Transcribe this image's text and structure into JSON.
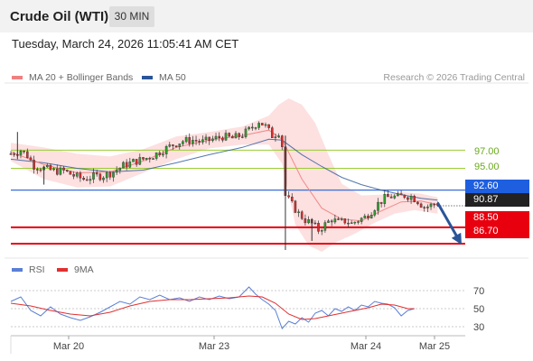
{
  "header": {
    "title": "Crude Oil (WTI)",
    "timeframe": "30 MIN"
  },
  "datetime": "Tuesday, March 24, 2026 11:05:41 AM CET",
  "legend": {
    "ma20_label": "MA 20 + Bollinger Bands",
    "ma50_label": "MA 50",
    "credit": "Research © 2026 Trading Central"
  },
  "rsi_legend": {
    "rsi_label": "RSI",
    "ma_label": "9MA"
  },
  "colors": {
    "ma20": "#f08080",
    "ma50": "#2a5599",
    "band_fill": "#fcd6d6",
    "up": "#2e9e2e",
    "down": "#d32f2f",
    "resistance": "#9acd32",
    "current_line": "#3a6fd8",
    "support": "#e8000f",
    "rsi": "#5a7fd6",
    "rsi_ma": "#e03030"
  },
  "levels": {
    "resistances": [
      "97.00",
      "95.00"
    ],
    "pivot": "92.60",
    "last": "90.87",
    "supports": [
      "88.50",
      "86.70"
    ]
  },
  "chart_data": [
    {
      "type": "candlestick",
      "title": "Crude Oil (WTI)",
      "timeframe": "30 MIN",
      "x_ticks": [
        "Mar 20",
        "Mar 23",
        "Mar 24",
        "Mar 25"
      ],
      "ylim": [
        85.7,
        103.0
      ],
      "horizontal_levels": [
        97.0,
        95.0,
        92.6,
        88.5,
        86.7
      ],
      "last_price": 90.87,
      "forecast": {
        "from": 91.2,
        "to": 86.7
      },
      "close_path": [
        [
          0,
          96.6
        ],
        [
          3,
          97.0
        ],
        [
          5,
          96.4
        ],
        [
          7,
          95.3
        ],
        [
          10,
          95.0
        ],
        [
          13,
          94.7
        ],
        [
          16,
          94.7
        ],
        [
          19,
          94.2
        ],
        [
          22,
          93.8
        ],
        [
          25,
          94.1
        ],
        [
          28,
          94.2
        ],
        [
          31,
          94.6
        ],
        [
          34,
          95.3
        ],
        [
          37,
          95.7
        ],
        [
          40,
          96.0
        ],
        [
          43,
          96.4
        ],
        [
          46,
          97.0
        ],
        [
          49,
          97.6
        ],
        [
          52,
          98.0
        ],
        [
          55,
          98.1
        ],
        [
          58,
          97.9
        ],
        [
          61,
          98.2
        ],
        [
          64,
          98.5
        ],
        [
          67,
          98.3
        ],
        [
          70,
          98.7
        ],
        [
          73,
          99.5
        ],
        [
          75,
          100.2
        ],
        [
          77,
          99.6
        ],
        [
          79,
          98.6
        ],
        [
          81,
          99.0
        ],
        [
          82,
          97.5
        ],
        [
          83,
          92.0
        ],
        [
          85,
          91.0
        ],
        [
          87,
          90.0
        ],
        [
          89,
          89.3
        ],
        [
          91,
          88.9
        ],
        [
          93,
          88.2
        ],
        [
          95,
          88.8
        ],
        [
          97,
          89.4
        ],
        [
          99,
          89.0
        ],
        [
          101,
          89.2
        ],
        [
          103,
          88.9
        ],
        [
          105,
          89.3
        ],
        [
          107,
          89.6
        ],
        [
          109,
          90.3
        ],
        [
          111,
          91.1
        ],
        [
          113,
          91.7
        ],
        [
          115,
          91.9
        ],
        [
          117,
          91.8
        ],
        [
          119,
          92.0
        ],
        [
          121,
          91.9
        ],
        [
          123,
          91.4
        ],
        [
          125,
          90.7
        ],
        [
          127,
          90.9
        ],
        [
          129,
          91.2
        ]
      ],
      "spikes": [
        [
          2,
          99.0,
          96.0
        ],
        [
          10,
          95.2,
          93.2
        ],
        [
          83,
          98.6,
          86.0
        ],
        [
          91,
          89.5,
          87.0
        ]
      ],
      "ma20": [
        [
          0,
          96.8
        ],
        [
          10,
          95.4
        ],
        [
          20,
          94.5
        ],
        [
          30,
          94.6
        ],
        [
          40,
          95.8
        ],
        [
          50,
          97.3
        ],
        [
          60,
          98.1
        ],
        [
          70,
          98.6
        ],
        [
          78,
          99.2
        ],
        [
          82,
          98.2
        ],
        [
          88,
          93.8
        ],
        [
          94,
          90.6
        ],
        [
          100,
          89.4
        ],
        [
          106,
          89.2
        ],
        [
          112,
          90.3
        ],
        [
          118,
          91.3
        ],
        [
          124,
          91.4
        ],
        [
          129,
          91.0
        ]
      ],
      "bb_upper": [
        [
          0,
          97.8
        ],
        [
          10,
          97.3
        ],
        [
          20,
          96.6
        ],
        [
          30,
          96.3
        ],
        [
          40,
          97.1
        ],
        [
          50,
          98.5
        ],
        [
          60,
          99.0
        ],
        [
          70,
          99.6
        ],
        [
          78,
          100.8
        ],
        [
          81,
          102.0
        ],
        [
          84,
          102.7
        ],
        [
          88,
          102.0
        ],
        [
          92,
          100.0
        ],
        [
          96,
          96.5
        ],
        [
          100,
          93.3
        ],
        [
          106,
          92.0
        ],
        [
          112,
          92.1
        ],
        [
          118,
          92.4
        ],
        [
          124,
          92.2
        ],
        [
          129,
          91.8
        ]
      ],
      "bb_lower": [
        [
          0,
          95.8
        ],
        [
          10,
          93.8
        ],
        [
          20,
          92.9
        ],
        [
          30,
          93.0
        ],
        [
          40,
          94.5
        ],
        [
          50,
          96.0
        ],
        [
          60,
          97.2
        ],
        [
          70,
          97.6
        ],
        [
          78,
          97.6
        ],
        [
          82,
          95.5
        ],
        [
          86,
          88.8
        ],
        [
          90,
          86.5
        ],
        [
          94,
          85.8
        ],
        [
          98,
          86.8
        ],
        [
          104,
          87.8
        ],
        [
          110,
          89.0
        ],
        [
          116,
          90.0
        ],
        [
          122,
          90.4
        ],
        [
          129,
          90.0
        ]
      ],
      "ma50": [
        [
          0,
          96.0
        ],
        [
          10,
          95.6
        ],
        [
          20,
          95.0
        ],
        [
          30,
          94.6
        ],
        [
          40,
          94.8
        ],
        [
          50,
          95.6
        ],
        [
          60,
          96.5
        ],
        [
          70,
          97.3
        ],
        [
          78,
          98.2
        ],
        [
          82,
          98.1
        ],
        [
          88,
          96.5
        ],
        [
          94,
          95.2
        ],
        [
          100,
          94.0
        ],
        [
          106,
          93.2
        ],
        [
          112,
          92.6
        ],
        [
          118,
          92.1
        ],
        [
          124,
          91.7
        ],
        [
          129,
          91.5
        ]
      ]
    },
    {
      "type": "line",
      "title": "RSI",
      "yticks": [
        70,
        50,
        30
      ],
      "ylim": [
        20,
        80
      ],
      "series": [
        {
          "name": "RSI",
          "values": [
            [
              0,
              58
            ],
            [
              3,
              63
            ],
            [
              6,
              48
            ],
            [
              9,
              42
            ],
            [
              12,
              52
            ],
            [
              15,
              44
            ],
            [
              18,
              40
            ],
            [
              21,
              37
            ],
            [
              24,
              41
            ],
            [
              27,
              46
            ],
            [
              30,
              52
            ],
            [
              33,
              58
            ],
            [
              36,
              55
            ],
            [
              39,
              63
            ],
            [
              42,
              60
            ],
            [
              45,
              65
            ],
            [
              48,
              60
            ],
            [
              51,
              62
            ],
            [
              54,
              58
            ],
            [
              57,
              63
            ],
            [
              60,
              60
            ],
            [
              63,
              64
            ],
            [
              66,
              61
            ],
            [
              69,
              63
            ],
            [
              72,
              74
            ],
            [
              74,
              66
            ],
            [
              76,
              60
            ],
            [
              78,
              55
            ],
            [
              80,
              48
            ],
            [
              82,
              28
            ],
            [
              84,
              36
            ],
            [
              86,
              33
            ],
            [
              88,
              40
            ],
            [
              90,
              35
            ],
            [
              92,
              45
            ],
            [
              94,
              48
            ],
            [
              96,
              42
            ],
            [
              98,
              50
            ],
            [
              100,
              47
            ],
            [
              102,
              52
            ],
            [
              104,
              48
            ],
            [
              106,
              54
            ],
            [
              108,
              52
            ],
            [
              110,
              58
            ],
            [
              112,
              56
            ],
            [
              114,
              55
            ],
            [
              116,
              51
            ],
            [
              118,
              42
            ],
            [
              120,
              48
            ],
            [
              122,
              50
            ]
          ]
        },
        {
          "name": "9MA",
          "values": [
            [
              0,
              56
            ],
            [
              6,
              53
            ],
            [
              12,
              48
            ],
            [
              18,
              44
            ],
            [
              24,
              42
            ],
            [
              30,
              46
            ],
            [
              36,
              53
            ],
            [
              42,
              58
            ],
            [
              48,
              60
            ],
            [
              54,
              60
            ],
            [
              60,
              61
            ],
            [
              66,
              62
            ],
            [
              72,
              64
            ],
            [
              76,
              63
            ],
            [
              80,
              56
            ],
            [
              84,
              44
            ],
            [
              88,
              38
            ],
            [
              92,
              39
            ],
            [
              96,
              42
            ],
            [
              100,
              45
            ],
            [
              104,
              48
            ],
            [
              108,
              51
            ],
            [
              112,
              55
            ],
            [
              116,
              54
            ],
            [
              120,
              50
            ],
            [
              122,
              50
            ]
          ]
        }
      ]
    }
  ]
}
